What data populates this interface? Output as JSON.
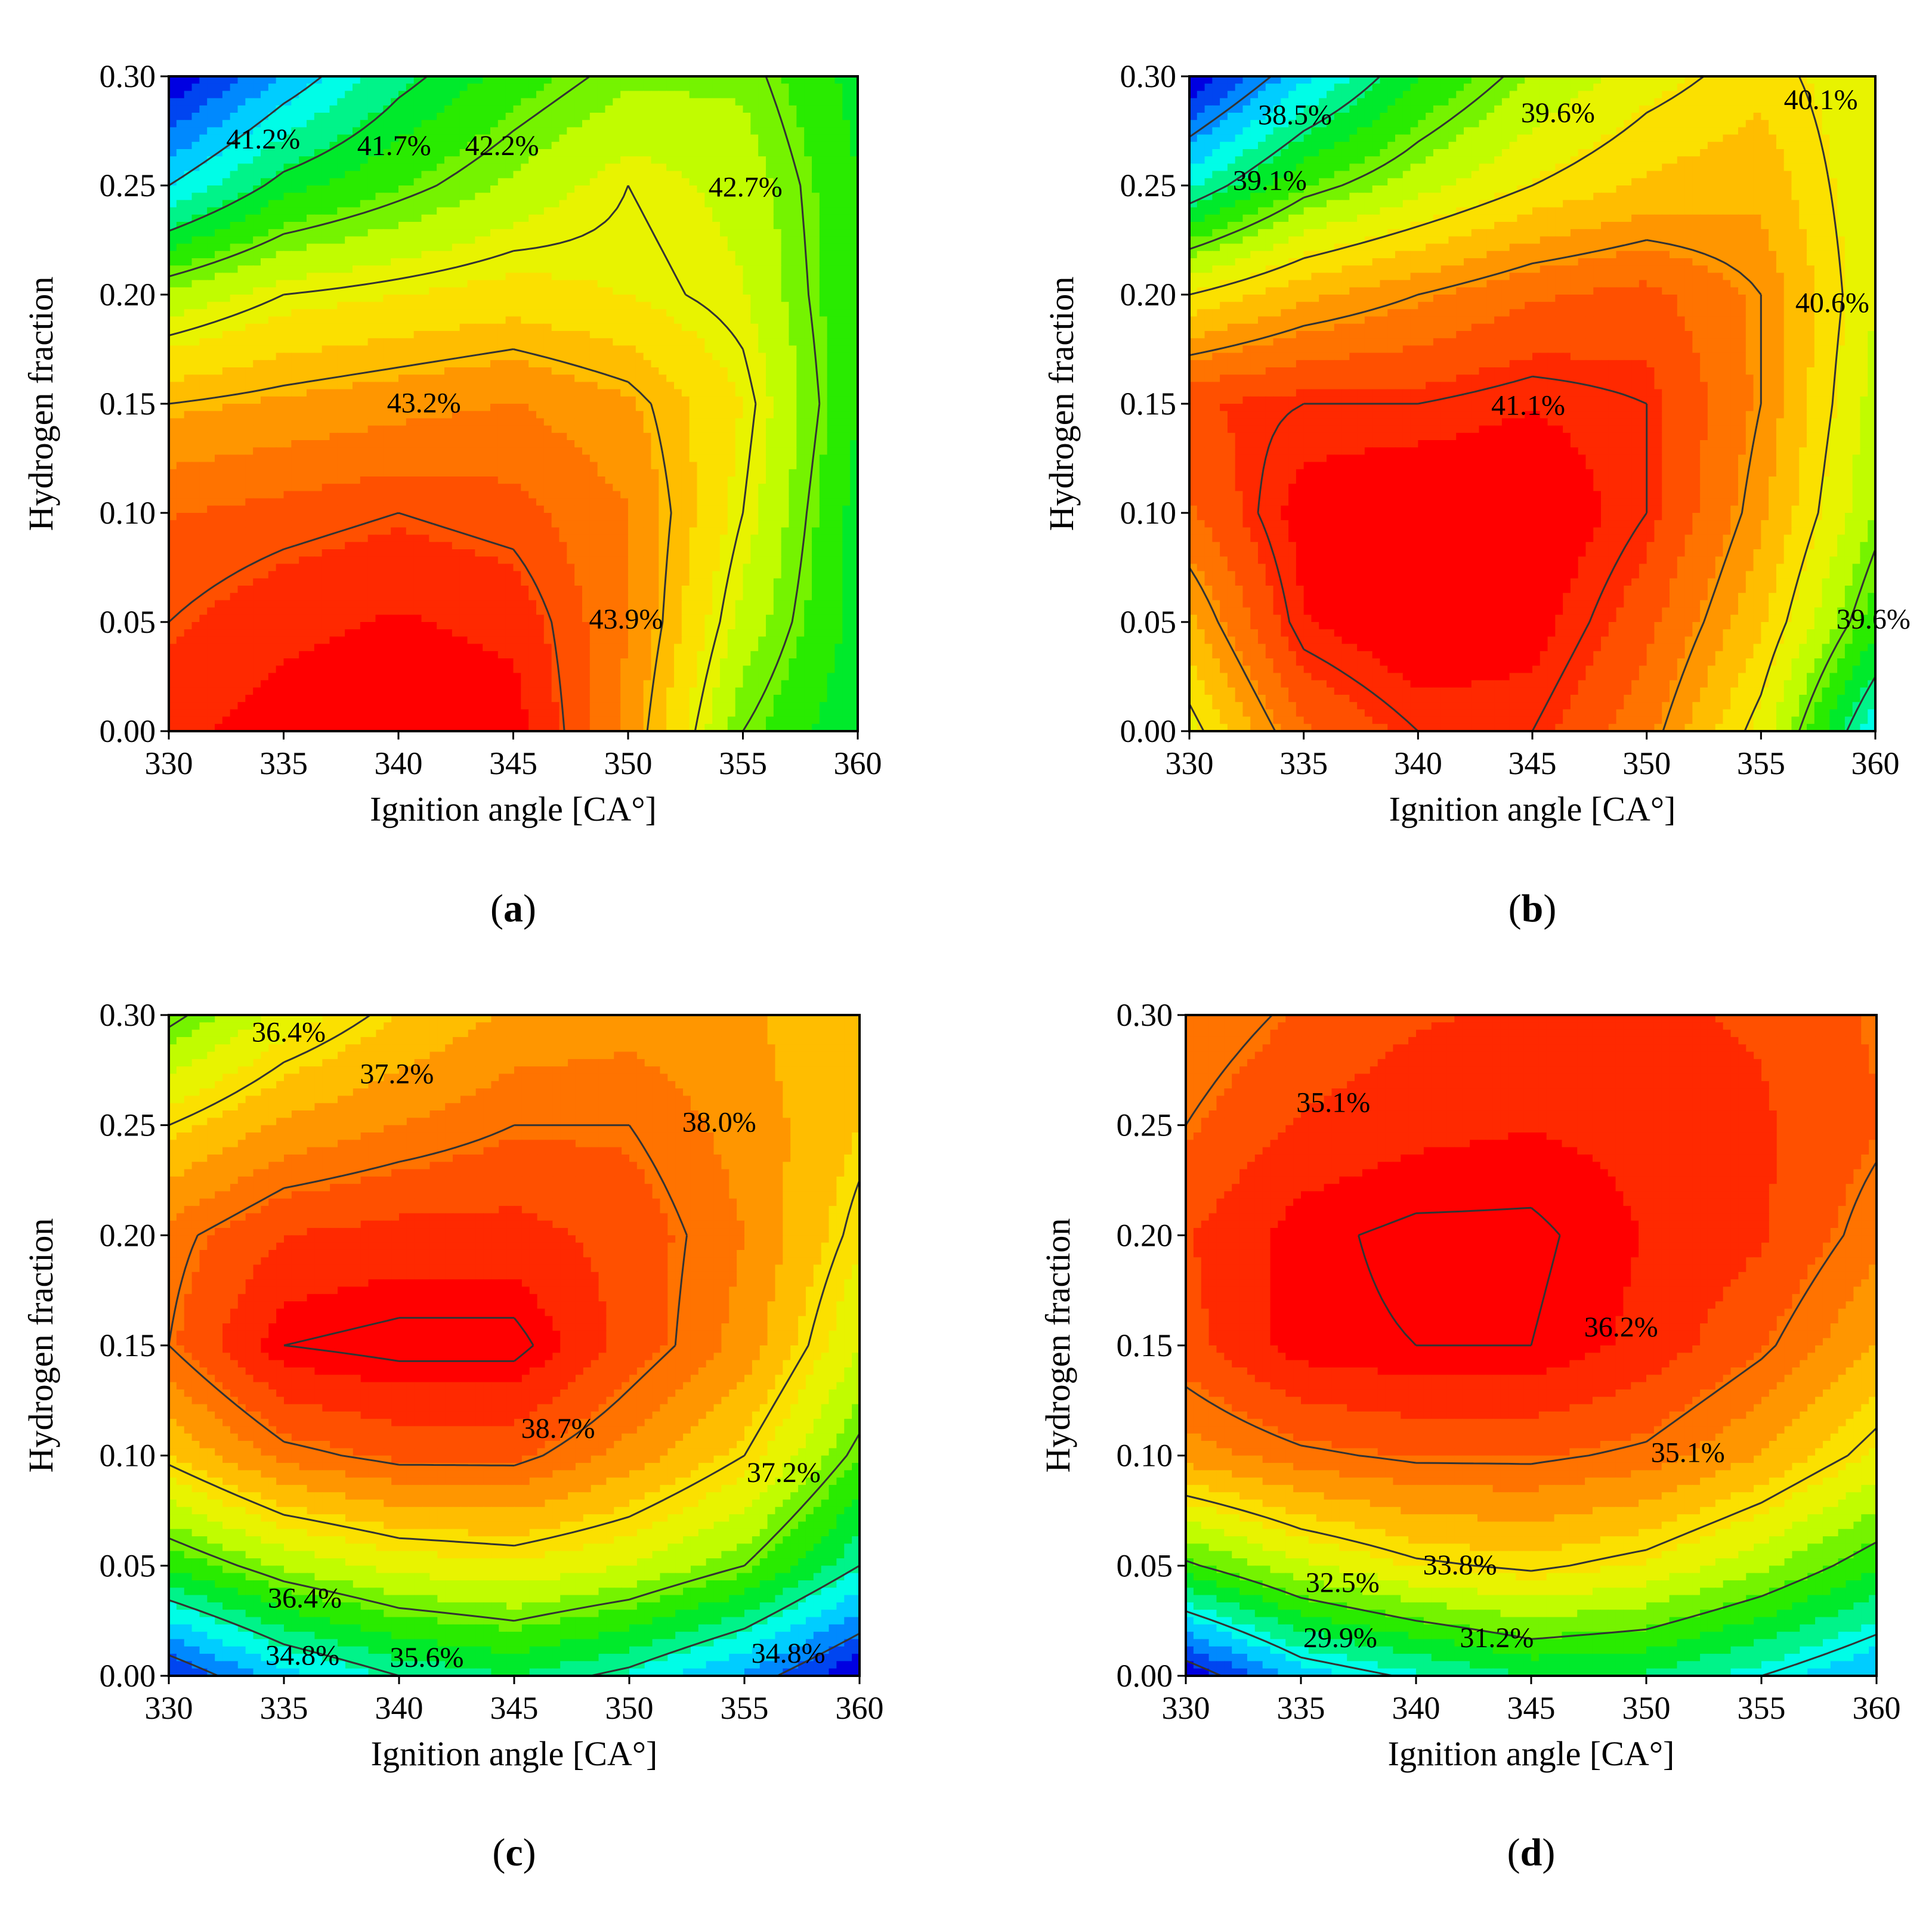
{
  "chart_data": [
    {
      "id": "a",
      "type": "heatmap",
      "panel_label": "a",
      "xlabel": "Ignition angle [CA°]",
      "ylabel": "Hydrogen fraction",
      "xlim": [
        330,
        360
      ],
      "ylim": [
        0.0,
        0.3
      ],
      "x": [
        330,
        335,
        340,
        345,
        350,
        355,
        360
      ],
      "y": [
        0.0,
        0.05,
        0.1,
        0.15,
        0.2,
        0.25,
        0.3
      ],
      "x_tick_labels": [
        "330",
        "335",
        "340",
        "345",
        "350",
        "355",
        "360"
      ],
      "y_tick_labels": [
        "0.00",
        "0.05",
        "0.10",
        "0.15",
        "0.20",
        "0.25",
        "0.30"
      ],
      "z": [
        [
          44.1,
          44.3,
          44.4,
          44.3,
          43.4,
          42.2,
          41.7
        ],
        [
          43.9,
          44.1,
          44.2,
          44.1,
          43.5,
          42.5,
          41.8
        ],
        [
          43.7,
          43.8,
          43.9,
          43.8,
          43.5,
          42.7,
          41.8
        ],
        [
          43.2,
          43.3,
          43.4,
          43.5,
          43.3,
          42.8,
          41.9
        ],
        [
          42.4,
          42.7,
          42.8,
          42.9,
          42.8,
          42.6,
          41.9
        ],
        [
          41.2,
          41.8,
          42.1,
          42.4,
          42.7,
          42.5,
          41.9
        ],
        [
          40.3,
          41.0,
          41.6,
          42.0,
          42.3,
          42.3,
          41.8
        ]
      ],
      "color_range": [
        40.3,
        44.4
      ],
      "contour_levels": [
        {
          "value": 41.2,
          "label": "41.2%"
        },
        {
          "value": 41.7,
          "label": "41.7%"
        },
        {
          "value": 42.2,
          "label": "42.2%"
        },
        {
          "value": 42.7,
          "label": "42.7%"
        },
        {
          "value": 43.2,
          "label": "43.2%"
        },
        {
          "value": 43.9,
          "label": "43.9%"
        }
      ]
    },
    {
      "id": "b",
      "type": "heatmap",
      "panel_label": "b",
      "xlabel": "Ignition angle [CA°]",
      "ylabel": "Hydrogen fraction",
      "xlim": [
        330,
        360
      ],
      "ylim": [
        0.0,
        0.3
      ],
      "x": [
        330,
        335,
        340,
        345,
        350,
        355,
        360
      ],
      "y": [
        0.0,
        0.05,
        0.1,
        0.15,
        0.2,
        0.25,
        0.3
      ],
      "x_tick_labels": [
        "330",
        "335",
        "340",
        "345",
        "350",
        "355",
        "360"
      ],
      "y_tick_labels": [
        "0.00",
        "0.05",
        "0.10",
        "0.15",
        "0.20",
        "0.25",
        "0.30"
      ],
      "z": [
        [
          40.0,
          40.8,
          41.1,
          41.1,
          40.7,
          40.0,
          38.8
        ],
        [
          40.4,
          41.2,
          41.4,
          41.3,
          40.9,
          40.3,
          39.4
        ],
        [
          40.8,
          41.3,
          41.4,
          41.4,
          41.1,
          40.5,
          39.7
        ],
        [
          41.0,
          41.1,
          41.1,
          41.2,
          41.1,
          40.6,
          39.8
        ],
        [
          40.1,
          40.4,
          40.6,
          40.8,
          40.9,
          40.6,
          39.9
        ],
        [
          38.9,
          39.5,
          39.8,
          40.1,
          40.3,
          40.4,
          39.9
        ],
        [
          38.0,
          38.7,
          39.3,
          39.7,
          40.0,
          40.2,
          39.9
        ]
      ],
      "color_range": [
        38.0,
        41.4
      ],
      "contour_levels": [
        {
          "value": 38.5,
          "label": "38.5%"
        },
        {
          "value": 39.1,
          "label": "39.1%"
        },
        {
          "value": 39.6,
          "label": "39.6%"
        },
        {
          "value": 40.1,
          "label": "40.1%"
        },
        {
          "value": 40.6,
          "label": "40.6%"
        },
        {
          "value": 41.1,
          "label": "41.1%"
        }
      ]
    },
    {
      "id": "c",
      "type": "heatmap",
      "panel_label": "c",
      "xlabel": "Ignition angle [CA°]",
      "ylabel": "Hydrogen fraction",
      "xlim": [
        330,
        360
      ],
      "ylim": [
        0.0,
        0.3
      ],
      "x": [
        330,
        335,
        340,
        345,
        350,
        355,
        360
      ],
      "y": [
        0.0,
        0.05,
        0.1,
        0.15,
        0.2,
        0.25,
        0.3
      ],
      "x_tick_labels": [
        "330",
        "335",
        "340",
        "345",
        "350",
        "355",
        "360"
      ],
      "y_tick_labels": [
        "0.00",
        "0.05",
        "0.10",
        "0.15",
        "0.20",
        "0.25",
        "0.30"
      ],
      "z": [
        [
          34.5,
          35.2,
          35.6,
          35.8,
          35.5,
          35.0,
          34.3
        ],
        [
          36.1,
          36.6,
          36.9,
          37.0,
          36.8,
          36.4,
          35.6
        ],
        [
          37.3,
          37.9,
          38.1,
          38.1,
          37.7,
          37.2,
          36.3
        ],
        [
          38.0,
          38.7,
          38.8,
          38.8,
          38.2,
          37.7,
          36.8
        ],
        [
          37.9,
          38.3,
          38.4,
          38.4,
          38.2,
          37.8,
          37.1
        ],
        [
          37.2,
          37.6,
          37.8,
          38.0,
          38.0,
          37.7,
          37.3
        ],
        [
          36.3,
          36.9,
          37.3,
          37.6,
          37.7,
          37.6,
          37.3
        ]
      ],
      "color_range": [
        34.3,
        38.8
      ],
      "contour_levels": [
        {
          "value": 34.8,
          "label": "34.8%"
        },
        {
          "value": 35.6,
          "label": "35.6%"
        },
        {
          "value": 36.4,
          "label": "36.4%"
        },
        {
          "value": 37.2,
          "label": "37.2%"
        },
        {
          "value": 38.0,
          "label": "38.0%"
        },
        {
          "value": 38.7,
          "label": "38.7%"
        }
      ]
    },
    {
      "id": "d",
      "type": "heatmap",
      "panel_label": "d",
      "xlabel": "Ignition angle [CA°]",
      "ylabel": "Hydrogen fraction",
      "xlim": [
        330,
        360
      ],
      "ylim": [
        0.0,
        0.3
      ],
      "x": [
        330,
        335,
        340,
        345,
        350,
        355,
        360
      ],
      "y": [
        0.0,
        0.05,
        0.1,
        0.15,
        0.2,
        0.25,
        0.3
      ],
      "x_tick_labels": [
        "330",
        "335",
        "340",
        "345",
        "350",
        "355",
        "360"
      ],
      "y_tick_labels": [
        "0.00",
        "0.05",
        "0.10",
        "0.15",
        "0.20",
        "0.25",
        "0.30"
      ],
      "z": [
        [
          29.5,
          30.8,
          31.3,
          31.8,
          31.7,
          31.2,
          30.6
        ],
        [
          32.4,
          33.2,
          33.7,
          33.9,
          33.6,
          33.0,
          32.2
        ],
        [
          34.6,
          35.0,
          35.2,
          35.2,
          35.0,
          34.4,
          33.6
        ],
        [
          35.4,
          36.1,
          36.2,
          36.2,
          35.8,
          35.2,
          34.4
        ],
        [
          35.5,
          36.1,
          36.3,
          36.3,
          35.9,
          35.6,
          34.9
        ],
        [
          35.1,
          35.6,
          35.8,
          35.9,
          35.8,
          35.6,
          35.2
        ],
        [
          34.8,
          35.2,
          35.5,
          35.6,
          35.6,
          35.5,
          35.1
        ]
      ],
      "color_range": [
        29.5,
        36.3
      ],
      "contour_levels": [
        {
          "value": 29.9,
          "label": "29.9%"
        },
        {
          "value": 31.2,
          "label": "31.2%"
        },
        {
          "value": 32.5,
          "label": "32.5%"
        },
        {
          "value": 33.8,
          "label": "33.8%"
        },
        {
          "value": 35.1,
          "label": "35.1%"
        },
        {
          "value": 36.2,
          "label": "36.2%"
        }
      ]
    }
  ],
  "text_labels": {
    "a": [
      {
        "text": "41.2%",
        "x": 332.5,
        "y": 0.267
      },
      {
        "text": "41.7%",
        "x": 338.2,
        "y": 0.264
      },
      {
        "text": "42.2%",
        "x": 342.9,
        "y": 0.264
      },
      {
        "text": "42.7%",
        "x": 353.5,
        "y": 0.245
      },
      {
        "text": "43.2%",
        "x": 339.5,
        "y": 0.146
      },
      {
        "text": "43.9%",
        "x": 348.3,
        "y": 0.047
      }
    ],
    "b": [
      {
        "text": "38.5%",
        "x": 333.0,
        "y": 0.278
      },
      {
        "text": "39.1%",
        "x": 331.9,
        "y": 0.248
      },
      {
        "text": "39.6%",
        "x": 344.5,
        "y": 0.279
      },
      {
        "text": "40.1%",
        "x": 356.0,
        "y": 0.285
      },
      {
        "text": "40.6%",
        "x": 356.5,
        "y": 0.192
      },
      {
        "text": "41.1%",
        "x": 343.2,
        "y": 0.145
      },
      {
        "text": "39.6%",
        "x": 358.3,
        "y": 0.047
      }
    ],
    "c": [
      {
        "text": "36.4%",
        "x": 333.6,
        "y": 0.288
      },
      {
        "text": "37.2%",
        "x": 338.3,
        "y": 0.269
      },
      {
        "text": "38.0%",
        "x": 352.3,
        "y": 0.247
      },
      {
        "text": "38.7%",
        "x": 345.3,
        "y": 0.108
      },
      {
        "text": "37.2%",
        "x": 355.1,
        "y": 0.088
      },
      {
        "text": "36.4%",
        "x": 334.3,
        "y": 0.031
      },
      {
        "text": "34.8%",
        "x": 334.2,
        "y": 0.005
      },
      {
        "text": "35.6%",
        "x": 339.6,
        "y": 0.004
      },
      {
        "text": "34.8%",
        "x": 355.3,
        "y": 0.006
      }
    ],
    "d": [
      {
        "text": "35.1%",
        "x": 334.8,
        "y": 0.256
      },
      {
        "text": "36.2%",
        "x": 347.3,
        "y": 0.154
      },
      {
        "text": "35.1%",
        "x": 350.2,
        "y": 0.097
      },
      {
        "text": "33.8%",
        "x": 340.3,
        "y": 0.046
      },
      {
        "text": "32.5%",
        "x": 335.2,
        "y": 0.038
      },
      {
        "text": "29.9%",
        "x": 335.1,
        "y": 0.013
      },
      {
        "text": "31.2%",
        "x": 341.9,
        "y": 0.013
      }
    ]
  }
}
